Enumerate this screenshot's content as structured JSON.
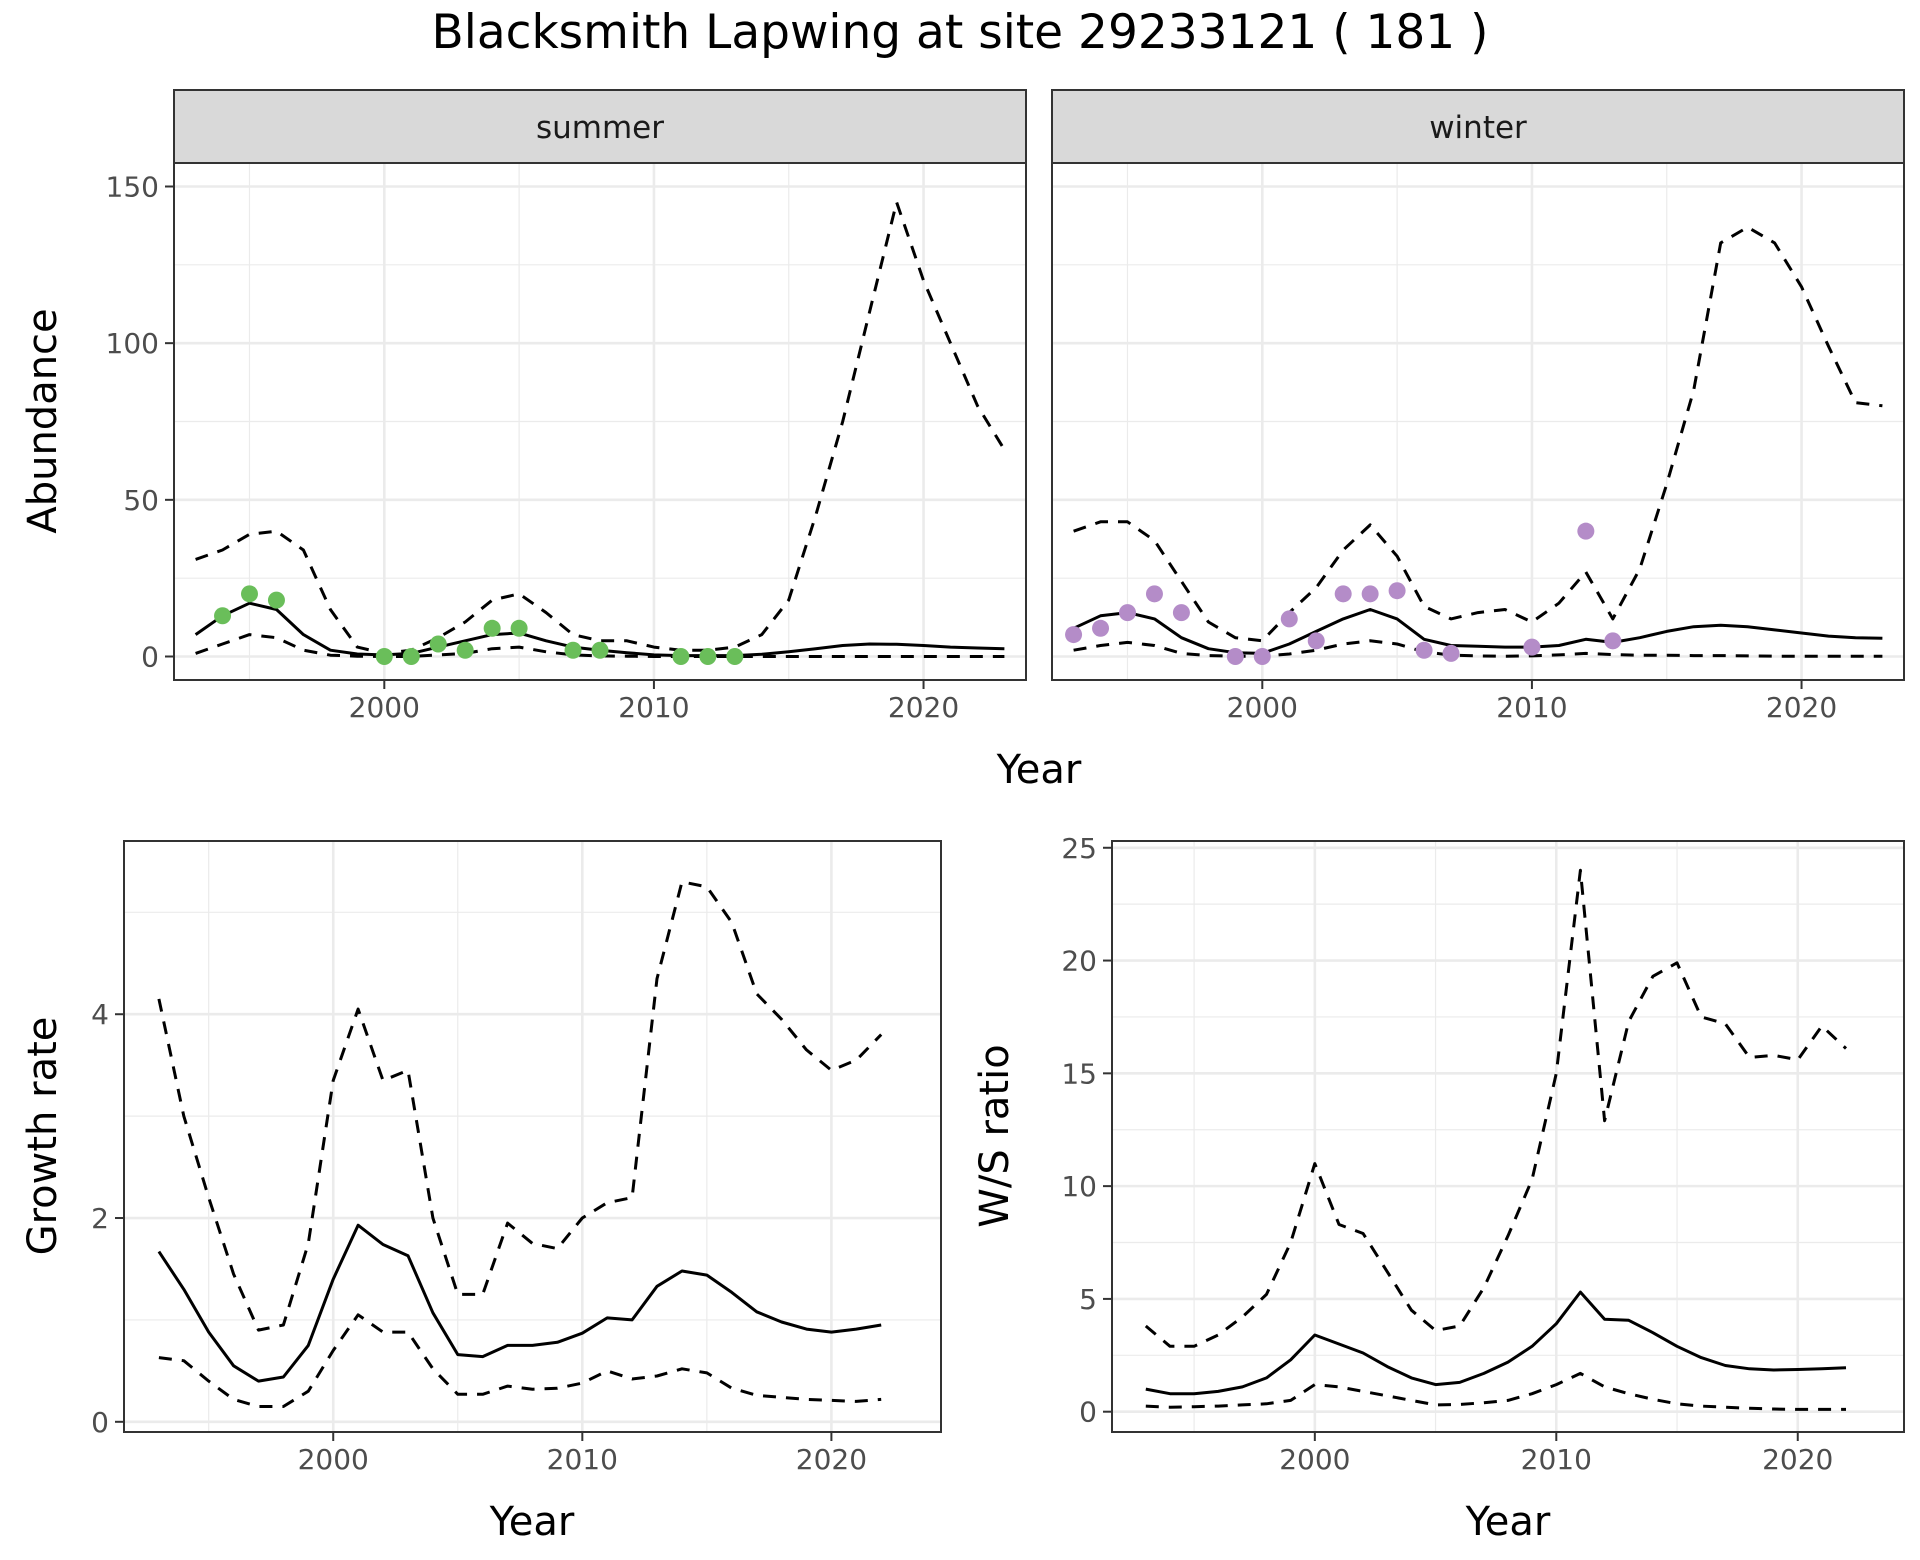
{
  "title": "Blacksmith Lapwing at site 29233121 ( 181 )",
  "colors": {
    "summer_points": "#6ABE5A",
    "winter_points": "#B48CC8",
    "lines": "#000000",
    "strip_fill": "#D9D9D9",
    "grid": "#EBEBEB"
  },
  "chart_data": [
    {
      "id": "abundance",
      "type": "line",
      "facet_labels": [
        "summer",
        "winter"
      ],
      "xlabel": "Year",
      "ylabel": "Abundance",
      "xlim": [
        1992.2,
        2023.8
      ],
      "ylim": [
        -7.5,
        157.5
      ],
      "xticks": [
        2000,
        2010,
        2020
      ],
      "yticks": [
        0,
        50,
        100,
        150
      ],
      "grid": true,
      "panels": [
        {
          "facet": "summer",
          "point_color": "#6ABE5A",
          "series": [
            {
              "style": "dashed",
              "x": [
                1993,
                1994,
                1995,
                1996,
                1997,
                1998,
                1999,
                2000,
                2001,
                2002,
                2003,
                2004,
                2005,
                2006,
                2007,
                2008,
                2009,
                2010,
                2011,
                2012,
                2013,
                2014,
                2015,
                2016,
                2017,
                2018,
                2019,
                2020,
                2021,
                2022,
                2023
              ],
              "y": [
                31,
                34,
                39,
                40,
                34,
                15,
                3,
                1,
                2,
                6,
                11,
                18,
                20,
                14,
                7,
                5,
                5,
                3,
                2,
                2,
                3,
                7,
                18,
                45,
                75,
                110,
                145,
                120,
                100,
                80,
                66
              ]
            },
            {
              "style": "solid",
              "x": [
                1993,
                1994,
                1995,
                1996,
                1997,
                1998,
                1999,
                2000,
                2001,
                2002,
                2003,
                2004,
                2005,
                2006,
                2007,
                2008,
                2009,
                2010,
                2011,
                2012,
                2013,
                2014,
                2015,
                2016,
                2017,
                2018,
                2019,
                2020,
                2021,
                2022,
                2023
              ],
              "y": [
                7,
                13,
                17,
                15,
                7,
                2,
                0.8,
                0.5,
                1,
                3,
                5,
                7,
                7.5,
                5,
                3,
                2,
                1.2,
                0.5,
                0.3,
                0.3,
                0.3,
                0.7,
                1.5,
                2.5,
                3.5,
                4,
                3.9,
                3.5,
                3,
                2.7,
                2.5
              ]
            },
            {
              "style": "dashed",
              "x": [
                1993,
                1994,
                1995,
                1996,
                1997,
                1998,
                1999,
                2000,
                2001,
                2002,
                2003,
                2004,
                2005,
                2006,
                2007,
                2008,
                2009,
                2010,
                2011,
                2012,
                2013,
                2014,
                2015,
                2016,
                2017,
                2018,
                2019,
                2020,
                2021,
                2022,
                2023
              ],
              "y": [
                1,
                4,
                7,
                6,
                2,
                0.4,
                0.1,
                0,
                0,
                0.5,
                1,
                2.5,
                3,
                1.5,
                0.5,
                0.2,
                0.1,
                0,
                0,
                0,
                0,
                0,
                0,
                0,
                0,
                0,
                0,
                0,
                0,
                0,
                0
              ]
            }
          ],
          "points": {
            "x": [
              1994,
              1995,
              1996,
              2000,
              2001,
              2002,
              2003,
              2004,
              2005,
              2007,
              2008,
              2011,
              2012,
              2013
            ],
            "y": [
              13,
              20,
              18,
              0,
              0,
              4,
              2,
              9,
              9,
              2,
              2,
              0,
              0,
              0
            ]
          }
        },
        {
          "facet": "winter",
          "point_color": "#B48CC8",
          "series": [
            {
              "style": "dashed",
              "x": [
                1993,
                1994,
                1995,
                1996,
                1997,
                1998,
                1999,
                2000,
                2001,
                2002,
                2003,
                2004,
                2005,
                2006,
                2007,
                2008,
                2009,
                2010,
                2011,
                2012,
                2013,
                2014,
                2015,
                2016,
                2017,
                2018,
                2019,
                2020,
                2021,
                2022,
                2023
              ],
              "y": [
                40,
                43,
                43,
                37,
                24,
                11,
                6,
                5,
                14,
                22,
                34,
                42,
                32,
                16,
                12,
                14,
                15,
                11,
                17,
                27,
                12,
                28,
                55,
                85,
                132,
                137,
                132,
                118,
                99,
                81,
                80
              ]
            },
            {
              "style": "solid",
              "x": [
                1993,
                1994,
                1995,
                1996,
                1997,
                1998,
                1999,
                2000,
                2001,
                2002,
                2003,
                2004,
                2005,
                2006,
                2007,
                2008,
                2009,
                2010,
                2011,
                2012,
                2013,
                2014,
                2015,
                2016,
                2017,
                2018,
                2019,
                2020,
                2021,
                2022,
                2023
              ],
              "y": [
                9,
                13,
                14,
                12,
                6,
                2.5,
                1.2,
                1,
                4,
                8,
                12,
                15,
                12,
                5.5,
                3.5,
                3.3,
                3,
                3,
                3.5,
                5.5,
                4.5,
                6,
                8,
                9.5,
                10,
                9.5,
                8.5,
                7.5,
                6.5,
                6,
                5.8
              ]
            },
            {
              "style": "dashed",
              "x": [
                1993,
                1994,
                1995,
                1996,
                1997,
                1998,
                1999,
                2000,
                2001,
                2002,
                2003,
                2004,
                2005,
                2006,
                2007,
                2008,
                2009,
                2010,
                2011,
                2012,
                2013,
                2014,
                2015,
                2016,
                2017,
                2018,
                2019,
                2020,
                2021,
                2022,
                2023
              ],
              "y": [
                2,
                3.5,
                4.5,
                3.5,
                1,
                0.3,
                0.1,
                0.1,
                0.8,
                2,
                4,
                5,
                4,
                1.5,
                0.4,
                0.2,
                0.1,
                0.2,
                0.5,
                1,
                0.6,
                0.4,
                0.4,
                0.3,
                0.3,
                0.2,
                0.1,
                0.1,
                0.1,
                0.1,
                0.1
              ]
            }
          ],
          "points": {
            "x": [
              1993,
              1994,
              1995,
              1996,
              1997,
              1999,
              2000,
              2001,
              2002,
              2003,
              2004,
              2005,
              2006,
              2007,
              2010,
              2012,
              2013
            ],
            "y": [
              7,
              9,
              14,
              20,
              14,
              0,
              0,
              12,
              5,
              20,
              20,
              21,
              2,
              1,
              3,
              40,
              5
            ]
          }
        }
      ]
    },
    {
      "id": "growth",
      "type": "line",
      "xlabel": "Year",
      "ylabel": "Growth rate",
      "xlim": [
        1991.6,
        2024.4
      ],
      "ylim": [
        -0.1,
        5.7
      ],
      "xticks": [
        2000,
        2010,
        2020
      ],
      "yticks": [
        0,
        2,
        4
      ],
      "grid": true,
      "series": [
        {
          "style": "dashed",
          "x": [
            1993,
            1994,
            1995,
            1996,
            1997,
            1998,
            1999,
            2000,
            2001,
            2002,
            2003,
            2004,
            2005,
            2006,
            2007,
            2008,
            2009,
            2010,
            2011,
            2012,
            2013,
            2014,
            2015,
            2016,
            2017,
            2018,
            2019,
            2020,
            2021,
            2022
          ],
          "y": [
            4.15,
            3.0,
            2.2,
            1.45,
            0.9,
            0.95,
            1.75,
            3.35,
            4.05,
            3.35,
            3.45,
            2.0,
            1.25,
            1.25,
            1.95,
            1.75,
            1.7,
            2.0,
            2.15,
            2.2,
            4.35,
            5.3,
            5.25,
            4.9,
            4.2,
            3.95,
            3.65,
            3.45,
            3.55,
            3.8
          ]
        },
        {
          "style": "solid",
          "x": [
            1993,
            1994,
            1995,
            1996,
            1997,
            1998,
            1999,
            2000,
            2001,
            2002,
            2003,
            2004,
            2005,
            2006,
            2007,
            2008,
            2009,
            2010,
            2011,
            2012,
            2013,
            2014,
            2015,
            2016,
            2017,
            2018,
            2019,
            2020,
            2021,
            2022
          ],
          "y": [
            1.67,
            1.3,
            0.88,
            0.55,
            0.4,
            0.44,
            0.75,
            1.4,
            1.93,
            1.74,
            1.63,
            1.07,
            0.66,
            0.64,
            0.75,
            0.75,
            0.78,
            0.87,
            1.02,
            1.0,
            1.33,
            1.48,
            1.44,
            1.27,
            1.08,
            0.98,
            0.91,
            0.88,
            0.91,
            0.95
          ]
        },
        {
          "style": "dashed",
          "x": [
            1993,
            1994,
            1995,
            1996,
            1997,
            1998,
            1999,
            2000,
            2001,
            2002,
            2003,
            2004,
            2005,
            2006,
            2007,
            2008,
            2009,
            2010,
            2011,
            2012,
            2013,
            2014,
            2015,
            2016,
            2017,
            2018,
            2019,
            2020,
            2021,
            2022
          ],
          "y": [
            0.63,
            0.6,
            0.4,
            0.22,
            0.15,
            0.15,
            0.3,
            0.7,
            1.05,
            0.88,
            0.88,
            0.52,
            0.27,
            0.27,
            0.35,
            0.32,
            0.33,
            0.38,
            0.5,
            0.42,
            0.45,
            0.52,
            0.48,
            0.33,
            0.26,
            0.24,
            0.22,
            0.21,
            0.2,
            0.22
          ]
        }
      ]
    },
    {
      "id": "ws_ratio",
      "type": "line",
      "xlabel": "Year",
      "ylabel": "W/S ratio",
      "xlim": [
        1991.6,
        2024.4
      ],
      "ylim": [
        -0.9,
        25.3
      ],
      "xticks": [
        2000,
        2010,
        2020
      ],
      "yticks": [
        0,
        5,
        10,
        15,
        20,
        25
      ],
      "grid": true,
      "series": [
        {
          "style": "dashed",
          "x": [
            1993,
            1994,
            1995,
            1996,
            1997,
            1998,
            1999,
            2000,
            2001,
            2002,
            2003,
            2004,
            2005,
            2006,
            2007,
            2008,
            2009,
            2010,
            2011,
            2012,
            2013,
            2014,
            2015,
            2016,
            2017,
            2018,
            2019,
            2020,
            2021,
            2022
          ],
          "y": [
            3.8,
            2.9,
            2.9,
            3.4,
            4.2,
            5.2,
            7.5,
            11.0,
            8.3,
            7.9,
            6.2,
            4.5,
            3.6,
            3.8,
            5.5,
            7.8,
            10.3,
            15.0,
            24.0,
            12.9,
            17.3,
            19.3,
            19.9,
            17.5,
            17.2,
            15.7,
            15.8,
            15.6,
            17.1,
            16.1
          ]
        },
        {
          "style": "solid",
          "x": [
            1993,
            1994,
            1995,
            1996,
            1997,
            1998,
            1999,
            2000,
            2001,
            2002,
            2003,
            2004,
            2005,
            2006,
            2007,
            2008,
            2009,
            2010,
            2011,
            2012,
            2013,
            2014,
            2015,
            2016,
            2017,
            2018,
            2019,
            2020,
            2021,
            2022
          ],
          "y": [
            1.0,
            0.8,
            0.8,
            0.9,
            1.1,
            1.5,
            2.3,
            3.4,
            3.0,
            2.6,
            2.0,
            1.5,
            1.2,
            1.3,
            1.7,
            2.2,
            2.9,
            3.9,
            5.3,
            4.1,
            4.05,
            3.5,
            2.9,
            2.4,
            2.05,
            1.9,
            1.85,
            1.87,
            1.9,
            1.95
          ]
        },
        {
          "style": "dashed",
          "x": [
            1993,
            1994,
            1995,
            1996,
            1997,
            1998,
            1999,
            2000,
            2001,
            2002,
            2003,
            2004,
            2005,
            2006,
            2007,
            2008,
            2009,
            2010,
            2011,
            2012,
            2013,
            2014,
            2015,
            2016,
            2017,
            2018,
            2019,
            2020,
            2021,
            2022
          ],
          "y": [
            0.25,
            0.2,
            0.22,
            0.25,
            0.3,
            0.35,
            0.5,
            1.2,
            1.1,
            0.9,
            0.7,
            0.5,
            0.3,
            0.32,
            0.4,
            0.5,
            0.8,
            1.2,
            1.7,
            1.1,
            0.8,
            0.55,
            0.35,
            0.25,
            0.2,
            0.15,
            0.12,
            0.1,
            0.1,
            0.1
          ]
        }
      ]
    }
  ]
}
